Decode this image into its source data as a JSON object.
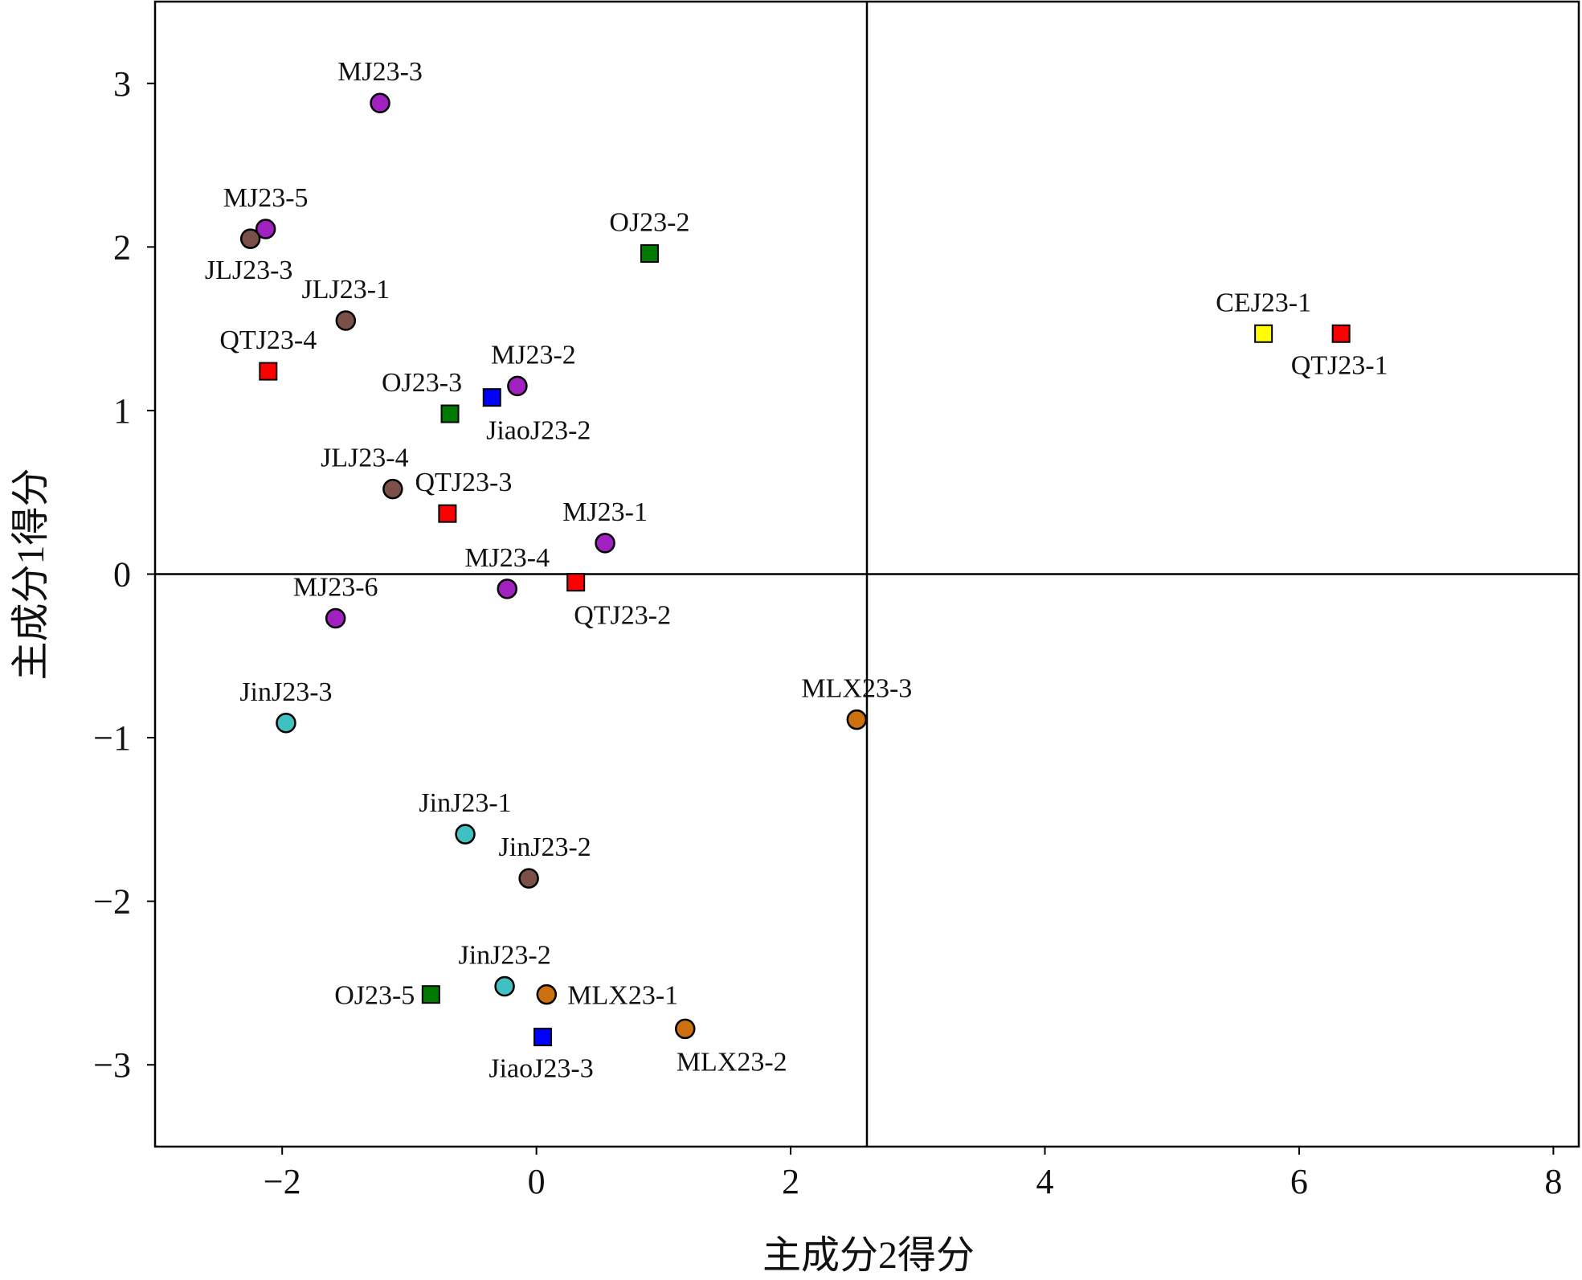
{
  "chart_data": {
    "type": "scatter",
    "title": "",
    "xlabel": "主成分2得分",
    "ylabel": "主成分1得分",
    "xlim": [
      -3.0,
      8.2
    ],
    "ylim": [
      -3.5,
      3.5
    ],
    "x_ticks": [
      {
        "value": -2,
        "label": "−2"
      },
      {
        "value": 0,
        "label": "0"
      },
      {
        "value": 2,
        "label": "2"
      },
      {
        "value": 4,
        "label": "4"
      },
      {
        "value": 6,
        "label": "6"
      },
      {
        "value": 8,
        "label": "8"
      }
    ],
    "y_ticks": [
      {
        "value": 3,
        "label": "3"
      },
      {
        "value": 2,
        "label": "2"
      },
      {
        "value": 1,
        "label": "1"
      },
      {
        "value": 0,
        "label": "0"
      },
      {
        "value": -1,
        "label": "−1"
      },
      {
        "value": -2,
        "label": "−2"
      },
      {
        "value": -3,
        "label": "−3"
      }
    ],
    "reference_lines": {
      "x": 2.6,
      "y": 0
    },
    "grid": false,
    "colors": {
      "purple": "#a020c0",
      "brown": "#7a5048",
      "teal": "#40c0c0",
      "orange": "#cc7010",
      "red": "#ff0000",
      "green": "#007a00",
      "blue": "#0000ff",
      "yellow": "#ffff00"
    },
    "points": [
      {
        "label": "MJ23-3",
        "x": -1.23,
        "y": 2.88,
        "shape": "circle",
        "color": "purple",
        "label_pos": "above"
      },
      {
        "label": "MJ23-5",
        "x": -2.13,
        "y": 2.11,
        "shape": "circle",
        "color": "purple",
        "label_pos": "above"
      },
      {
        "label": "JLJ23-3",
        "x": -2.25,
        "y": 2.05,
        "shape": "circle",
        "color": "brown",
        "label_pos": "below"
      },
      {
        "label": "OJ23-2",
        "x": 0.89,
        "y": 1.96,
        "shape": "square",
        "color": "green",
        "label_pos": "above"
      },
      {
        "label": "JLJ23-1",
        "x": -1.5,
        "y": 1.55,
        "shape": "circle",
        "color": "brown",
        "label_pos": "above"
      },
      {
        "label": "QTJ23-4",
        "x": -2.11,
        "y": 1.24,
        "shape": "square",
        "color": "red",
        "label_pos": "above"
      },
      {
        "label": "MJ23-2",
        "x": -0.15,
        "y": 1.15,
        "shape": "circle",
        "color": "purple",
        "label_pos": "above-right"
      },
      {
        "label": "JiaoJ23-2",
        "x": -0.35,
        "y": 1.08,
        "shape": "square",
        "color": "blue",
        "label_pos": "below-right"
      },
      {
        "label": "OJ23-3",
        "x": -0.68,
        "y": 0.98,
        "shape": "square",
        "color": "green",
        "label_pos": "above-left"
      },
      {
        "label": "CEJ23-1",
        "x": 5.72,
        "y": 1.47,
        "shape": "square",
        "color": "yellow",
        "label_pos": "above"
      },
      {
        "label": "QTJ23-1",
        "x": 6.33,
        "y": 1.47,
        "shape": "square",
        "color": "red",
        "label_pos": "below"
      },
      {
        "label": "JLJ23-4",
        "x": -1.13,
        "y": 0.52,
        "shape": "circle",
        "color": "brown",
        "label_pos": "above-left"
      },
      {
        "label": "QTJ23-3",
        "x": -0.7,
        "y": 0.37,
        "shape": "square",
        "color": "red",
        "label_pos": "above-right"
      },
      {
        "label": "MJ23-1",
        "x": 0.54,
        "y": 0.19,
        "shape": "circle",
        "color": "purple",
        "label_pos": "above"
      },
      {
        "label": "MJ23-4",
        "x": -0.23,
        "y": -0.09,
        "shape": "circle",
        "color": "purple",
        "label_pos": "above"
      },
      {
        "label": "QTJ23-2",
        "x": 0.31,
        "y": -0.05,
        "shape": "square",
        "color": "red",
        "label_pos": "below-right"
      },
      {
        "label": "MJ23-6",
        "x": -1.58,
        "y": -0.27,
        "shape": "circle",
        "color": "purple",
        "label_pos": "above"
      },
      {
        "label": "JinJ23-3",
        "x": -1.97,
        "y": -0.91,
        "shape": "circle",
        "color": "teal",
        "label_pos": "above"
      },
      {
        "label": "MLX23-3",
        "x": 2.52,
        "y": -0.89,
        "shape": "circle",
        "color": "orange",
        "label_pos": "above"
      },
      {
        "label": "JinJ23-1",
        "x": -0.56,
        "y": -1.59,
        "shape": "circle",
        "color": "teal",
        "label_pos": "above"
      },
      {
        "label": "JinJ23-2",
        "x": -0.06,
        "y": -1.86,
        "shape": "circle",
        "color": "brown",
        "label_pos": "above-right"
      },
      {
        "label": "JinJ23-2",
        "x": -0.25,
        "y": -2.52,
        "shape": "circle",
        "color": "teal",
        "label_pos": "above"
      },
      {
        "label": "OJ23-5",
        "x": -0.83,
        "y": -2.57,
        "shape": "square",
        "color": "green",
        "label_pos": "left"
      },
      {
        "label": "MLX23-1",
        "x": 0.08,
        "y": -2.57,
        "shape": "circle",
        "color": "orange",
        "label_pos": "right"
      },
      {
        "label": "JiaoJ23-3",
        "x": 0.05,
        "y": -2.83,
        "shape": "square",
        "color": "blue",
        "label_pos": "below"
      },
      {
        "label": "MLX23-2",
        "x": 1.17,
        "y": -2.78,
        "shape": "circle",
        "color": "orange",
        "label_pos": "below-right"
      }
    ]
  }
}
